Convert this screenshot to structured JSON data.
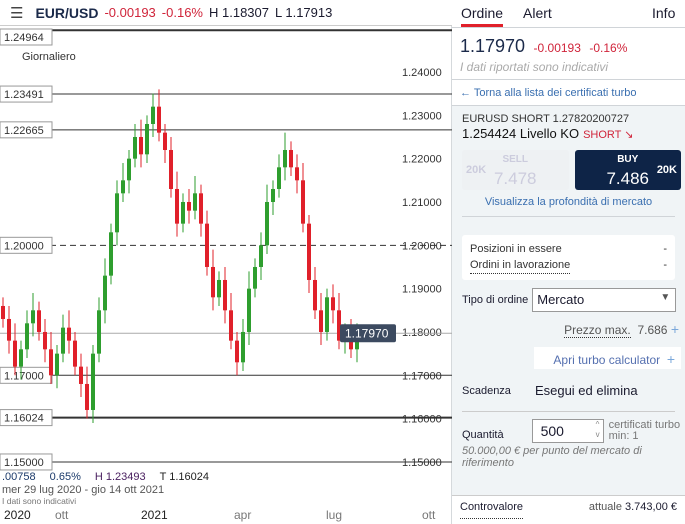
{
  "header": {
    "menu_icon": "hamburger-icon",
    "symbol": "EUR/USD",
    "change": "-0.00193",
    "change_pct": "-0.16%",
    "high": "H 1.18307",
    "low": "L 1.17913"
  },
  "chart": {
    "period": "Giornaliero",
    "stats": {
      "change": ".00758",
      "change_pct": "0.65%",
      "high": "H 1.23493",
      "low": "T 1.16024"
    },
    "range": "mer 29 lug 2020 - gio 14 ott 2021",
    "indicative": "I dati sono indicativi",
    "x_labels": [
      "2020",
      "ott",
      "2021",
      "apr",
      "lug",
      "ott"
    ]
  },
  "chart_data": {
    "type": "candlestick",
    "ylim": [
      1.145,
      1.25
    ],
    "y_ticks": [
      "1.24000",
      "1.23000",
      "1.22000",
      "1.21000",
      "1.20000",
      "1.19000",
      "1.18000",
      "1.17000",
      "1.16000",
      "1.15000"
    ],
    "y_tick_values": [
      1.24,
      1.23,
      1.22,
      1.21,
      1.2,
      1.19,
      1.18,
      1.17,
      1.16,
      1.15
    ],
    "levels": [
      {
        "label": "1.24964",
        "value": 1.24964,
        "style": "thick"
      },
      {
        "label": "1.23491",
        "value": 1.23491,
        "style": "solid"
      },
      {
        "label": "1.22665",
        "value": 1.22665,
        "style": "solid"
      },
      {
        "label": "1.20000",
        "value": 1.2,
        "style": "dashed"
      },
      {
        "label": "1.17000",
        "value": 1.17,
        "style": "solid"
      },
      {
        "label": "1.16024",
        "value": 1.16024,
        "style": "thick"
      },
      {
        "label": "1.15000",
        "value": 1.15,
        "style": "solid"
      }
    ],
    "current": {
      "label": "1.17970",
      "value": 1.1797
    },
    "closes": [
      1.183,
      1.178,
      1.172,
      1.176,
      1.182,
      1.185,
      1.18,
      1.176,
      1.17,
      1.175,
      1.181,
      1.178,
      1.172,
      1.168,
      1.162,
      1.175,
      1.185,
      1.193,
      1.203,
      1.212,
      1.215,
      1.22,
      1.225,
      1.221,
      1.228,
      1.232,
      1.226,
      1.222,
      1.213,
      1.205,
      1.21,
      1.208,
      1.212,
      1.205,
      1.195,
      1.188,
      1.192,
      1.185,
      1.178,
      1.173,
      1.18,
      1.19,
      1.195,
      1.2,
      1.21,
      1.213,
      1.218,
      1.222,
      1.218,
      1.215,
      1.205,
      1.192,
      1.185,
      1.18,
      1.188,
      1.185,
      1.178,
      1.18,
      1.176,
      1.178
    ],
    "up_color": "#2e9e2e",
    "down_color": "#e0202a"
  },
  "panel": {
    "tabs": [
      "Ordine",
      "Alert",
      "Info"
    ],
    "price": "1.17970",
    "change": "-0.00193",
    "change_pct": "-0.16%",
    "note": "I dati riportati sono indicativi",
    "back": "Torna alla lista dei certificati turbo",
    "cert_name": "EURUSD SHORT 1.27820200727",
    "ko": "1.254424 Livello KO",
    "direction": "SHORT ↘",
    "sell": {
      "label": "SELL",
      "price": "7.478",
      "size": "20K"
    },
    "buy": {
      "label": "BUY",
      "price": "7.486",
      "size": "20K"
    },
    "depth": "Visualizza la profondità di mercato",
    "positions_label": "Posizioni in essere",
    "positions_value": "-",
    "orders_label": "Ordini in lavorazione",
    "orders_value": "-",
    "order_type_label": "Tipo di ordine",
    "order_type": "Mercato",
    "max_price_label": "Prezzo max.",
    "max_price": "7.686",
    "calc": "Apri turbo calculator",
    "expiry_label": "Scadenza",
    "expiry": "Esegui ed elimina",
    "qty_label": "Quantità",
    "qty": "500",
    "qty_unit": "certificati turbo",
    "qty_min": "min: 1",
    "qty_note": "50.000,00 € per punto del mercato di riferimento",
    "ctrl_label": "Controvalore",
    "ctrl_prefix": "attuale",
    "ctrl_value": "3.743,00 €"
  }
}
